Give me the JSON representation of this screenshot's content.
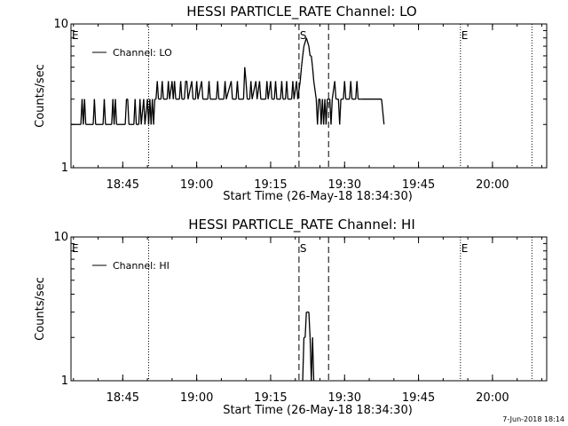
{
  "footer_timestamp": "7-Jun-2018 18:14",
  "chart_data": [
    {
      "type": "line",
      "title": "HESSI PARTICLE_RATE Channel: LO",
      "xlabel": "Start Time (26-May-18 18:34:30)",
      "ylabel": "Counts/sec",
      "yscale": "log",
      "xlim": [
        "18:34:30",
        "20:11:00"
      ],
      "ylim": [
        1,
        10
      ],
      "x_ticks": [
        "18:45",
        "19:00",
        "19:15",
        "19:30",
        "19:45",
        "20:00"
      ],
      "y_ticks": [
        "1",
        "10"
      ],
      "legend": {
        "label": "Channel: LO",
        "position": "top-left"
      },
      "markers": [
        {
          "label": "E",
          "time": "18:34:30",
          "style": "none"
        },
        {
          "label": "",
          "time": "18:50:15",
          "style": "dotted"
        },
        {
          "label": "",
          "time": "19:20:45",
          "style": "dashed"
        },
        {
          "label": "S",
          "time": "19:20:45",
          "style": "none"
        },
        {
          "label": "",
          "time": "19:26:45",
          "style": "dashed"
        },
        {
          "label": "",
          "time": "19:53:30",
          "style": "dotted"
        },
        {
          "label": "E",
          "time": "19:53:30",
          "style": "none"
        },
        {
          "label": "",
          "time": "20:08:00",
          "style": "dotted"
        }
      ],
      "series": [
        {
          "name": "Channel: LO",
          "points": [
            [
              "18:34:30",
              2
            ],
            [
              "18:36:30",
              2
            ],
            [
              "18:36:45",
              3
            ],
            [
              "18:37:00",
              2
            ],
            [
              "18:37:15",
              3
            ],
            [
              "18:37:30",
              2
            ],
            [
              "18:39:00",
              2
            ],
            [
              "18:39:15",
              3
            ],
            [
              "18:39:30",
              2
            ],
            [
              "18:41:00",
              2
            ],
            [
              "18:41:15",
              3
            ],
            [
              "18:41:30",
              2
            ],
            [
              "18:42:45",
              2
            ],
            [
              "18:43:00",
              3
            ],
            [
              "18:43:15",
              2
            ],
            [
              "18:43:30",
              3
            ],
            [
              "18:43:45",
              2
            ],
            [
              "18:45:30",
              2
            ],
            [
              "18:45:45",
              3
            ],
            [
              "18:46:00",
              3
            ],
            [
              "18:46:15",
              2
            ],
            [
              "18:47:15",
              2
            ],
            [
              "18:47:30",
              3
            ],
            [
              "18:47:45",
              2
            ],
            [
              "18:48:15",
              2
            ],
            [
              "18:48:30",
              3
            ],
            [
              "18:48:45",
              2
            ],
            [
              "18:49:15",
              3
            ],
            [
              "18:49:30",
              2
            ],
            [
              "18:50:00",
              3
            ],
            [
              "18:50:15",
              2
            ],
            [
              "18:50:30",
              3
            ],
            [
              "18:50:45",
              2
            ],
            [
              "18:51:00",
              3
            ],
            [
              "18:51:15",
              2
            ],
            [
              "18:51:30",
              3
            ],
            [
              "18:51:45",
              3
            ],
            [
              "18:52:00",
              4
            ],
            [
              "18:52:15",
              3
            ],
            [
              "18:52:45",
              3
            ],
            [
              "18:53:00",
              4
            ],
            [
              "18:53:15",
              3
            ],
            [
              "18:54:00",
              3
            ],
            [
              "18:54:15",
              4
            ],
            [
              "18:54:30",
              3
            ],
            [
              "18:55:00",
              4
            ],
            [
              "18:55:15",
              3
            ],
            [
              "18:55:30",
              4
            ],
            [
              "18:55:45",
              3
            ],
            [
              "18:56:30",
              3
            ],
            [
              "18:56:45",
              4
            ],
            [
              "18:57:00",
              3
            ],
            [
              "18:57:30",
              3
            ],
            [
              "18:57:45",
              4
            ],
            [
              "18:58:00",
              4
            ],
            [
              "18:58:15",
              3
            ],
            [
              "18:59:00",
              4
            ],
            [
              "18:59:15",
              3
            ],
            [
              "18:59:45",
              3
            ],
            [
              "19:00:00",
              4
            ],
            [
              "19:00:15",
              3
            ],
            [
              "19:01:00",
              4
            ],
            [
              "19:01:15",
              3
            ],
            [
              "19:02:15",
              3
            ],
            [
              "19:02:30",
              4
            ],
            [
              "19:02:45",
              3
            ],
            [
              "19:04:00",
              3
            ],
            [
              "19:04:15",
              4
            ],
            [
              "19:04:30",
              3
            ],
            [
              "19:05:30",
              3
            ],
            [
              "19:05:45",
              4
            ],
            [
              "19:06:00",
              3
            ],
            [
              "19:07:00",
              4
            ],
            [
              "19:07:15",
              3
            ],
            [
              "19:08:00",
              3
            ],
            [
              "19:08:15",
              4
            ],
            [
              "19:08:30",
              3
            ],
            [
              "19:09:30",
              3
            ],
            [
              "19:09:45",
              5
            ],
            [
              "19:10:00",
              4
            ],
            [
              "19:10:15",
              3
            ],
            [
              "19:10:45",
              3
            ],
            [
              "19:11:00",
              4
            ],
            [
              "19:11:15",
              3
            ],
            [
              "19:12:00",
              4
            ],
            [
              "19:12:15",
              3
            ],
            [
              "19:12:45",
              4
            ],
            [
              "19:13:00",
              3
            ],
            [
              "19:14:00",
              3
            ],
            [
              "19:14:15",
              4
            ],
            [
              "19:14:30",
              3
            ],
            [
              "19:15:00",
              4
            ],
            [
              "19:15:15",
              3
            ],
            [
              "19:15:45",
              3
            ],
            [
              "19:16:00",
              4
            ],
            [
              "19:16:15",
              3
            ],
            [
              "19:17:00",
              3
            ],
            [
              "19:17:15",
              4
            ],
            [
              "19:17:30",
              3
            ],
            [
              "19:18:00",
              3
            ],
            [
              "19:18:15",
              4
            ],
            [
              "19:18:30",
              3
            ],
            [
              "19:19:15",
              3
            ],
            [
              "19:19:30",
              4
            ],
            [
              "19:19:45",
              3
            ],
            [
              "19:20:15",
              4
            ],
            [
              "19:20:30",
              3
            ],
            [
              "19:21:00",
              4
            ],
            [
              "19:21:15",
              5
            ],
            [
              "19:21:30",
              6
            ],
            [
              "19:21:45",
              7
            ],
            [
              "19:22:15",
              8
            ],
            [
              "19:22:45",
              7
            ],
            [
              "19:23:00",
              6
            ],
            [
              "19:23:15",
              6
            ],
            [
              "19:23:30",
              5
            ],
            [
              "19:23:45",
              4
            ],
            [
              "19:24:15",
              3
            ],
            [
              "19:24:30",
              2
            ],
            [
              "19:24:45",
              3
            ],
            [
              "19:25:00",
              3
            ],
            [
              "19:25:15",
              2
            ],
            [
              "19:25:30",
              3
            ],
            [
              "19:25:45",
              2
            ],
            [
              "19:26:00",
              3
            ],
            [
              "19:26:15",
              2
            ],
            [
              "19:26:30",
              3
            ],
            [
              "19:27:00",
              3
            ],
            [
              "19:27:15",
              2
            ],
            [
              "19:27:30",
              3
            ],
            [
              "19:28:00",
              4
            ],
            [
              "19:28:15",
              3
            ],
            [
              "19:28:45",
              3
            ],
            [
              "19:29:00",
              2
            ],
            [
              "19:29:15",
              3
            ],
            [
              "19:29:45",
              3
            ],
            [
              "19:30:00",
              4
            ],
            [
              "19:30:15",
              3
            ],
            [
              "19:31:00",
              3
            ],
            [
              "19:31:15",
              4
            ],
            [
              "19:31:30",
              3
            ],
            [
              "19:32:15",
              3
            ],
            [
              "19:32:30",
              4
            ],
            [
              "19:32:45",
              3
            ],
            [
              "19:33:30",
              3
            ],
            [
              "19:37:30",
              3
            ],
            [
              "19:38:00",
              2
            ]
          ]
        }
      ]
    },
    {
      "type": "line",
      "title": "HESSI PARTICLE_RATE Channel: HI",
      "xlabel": "Start Time (26-May-18 18:34:30)",
      "ylabel": "Counts/sec",
      "yscale": "log",
      "xlim": [
        "18:34:30",
        "20:11:00"
      ],
      "ylim": [
        1,
        10
      ],
      "x_ticks": [
        "18:45",
        "19:00",
        "19:15",
        "19:30",
        "19:45",
        "20:00"
      ],
      "y_ticks": [
        "1",
        "10"
      ],
      "legend": {
        "label": "Channel: HI",
        "position": "top-left"
      },
      "markers": [
        {
          "label": "E",
          "time": "18:34:30",
          "style": "none"
        },
        {
          "label": "",
          "time": "18:50:15",
          "style": "dotted"
        },
        {
          "label": "",
          "time": "19:20:45",
          "style": "dashed"
        },
        {
          "label": "S",
          "time": "19:20:45",
          "style": "none"
        },
        {
          "label": "",
          "time": "19:26:45",
          "style": "dashed"
        },
        {
          "label": "",
          "time": "19:53:30",
          "style": "dotted"
        },
        {
          "label": "E",
          "time": "19:53:30",
          "style": "none"
        },
        {
          "label": "",
          "time": "20:08:00",
          "style": "dotted"
        }
      ],
      "series": [
        {
          "name": "Channel: HI",
          "points": [
            [
              "19:21:30",
              1
            ],
            [
              "19:21:45",
              2
            ],
            [
              "19:22:00",
              2
            ],
            [
              "19:22:15",
              3
            ],
            [
              "19:22:45",
              3
            ],
            [
              "19:23:00",
              2
            ],
            [
              "19:23:15",
              1
            ],
            [
              "19:23:30",
              2
            ],
            [
              "19:23:45",
              1
            ]
          ]
        }
      ]
    }
  ]
}
